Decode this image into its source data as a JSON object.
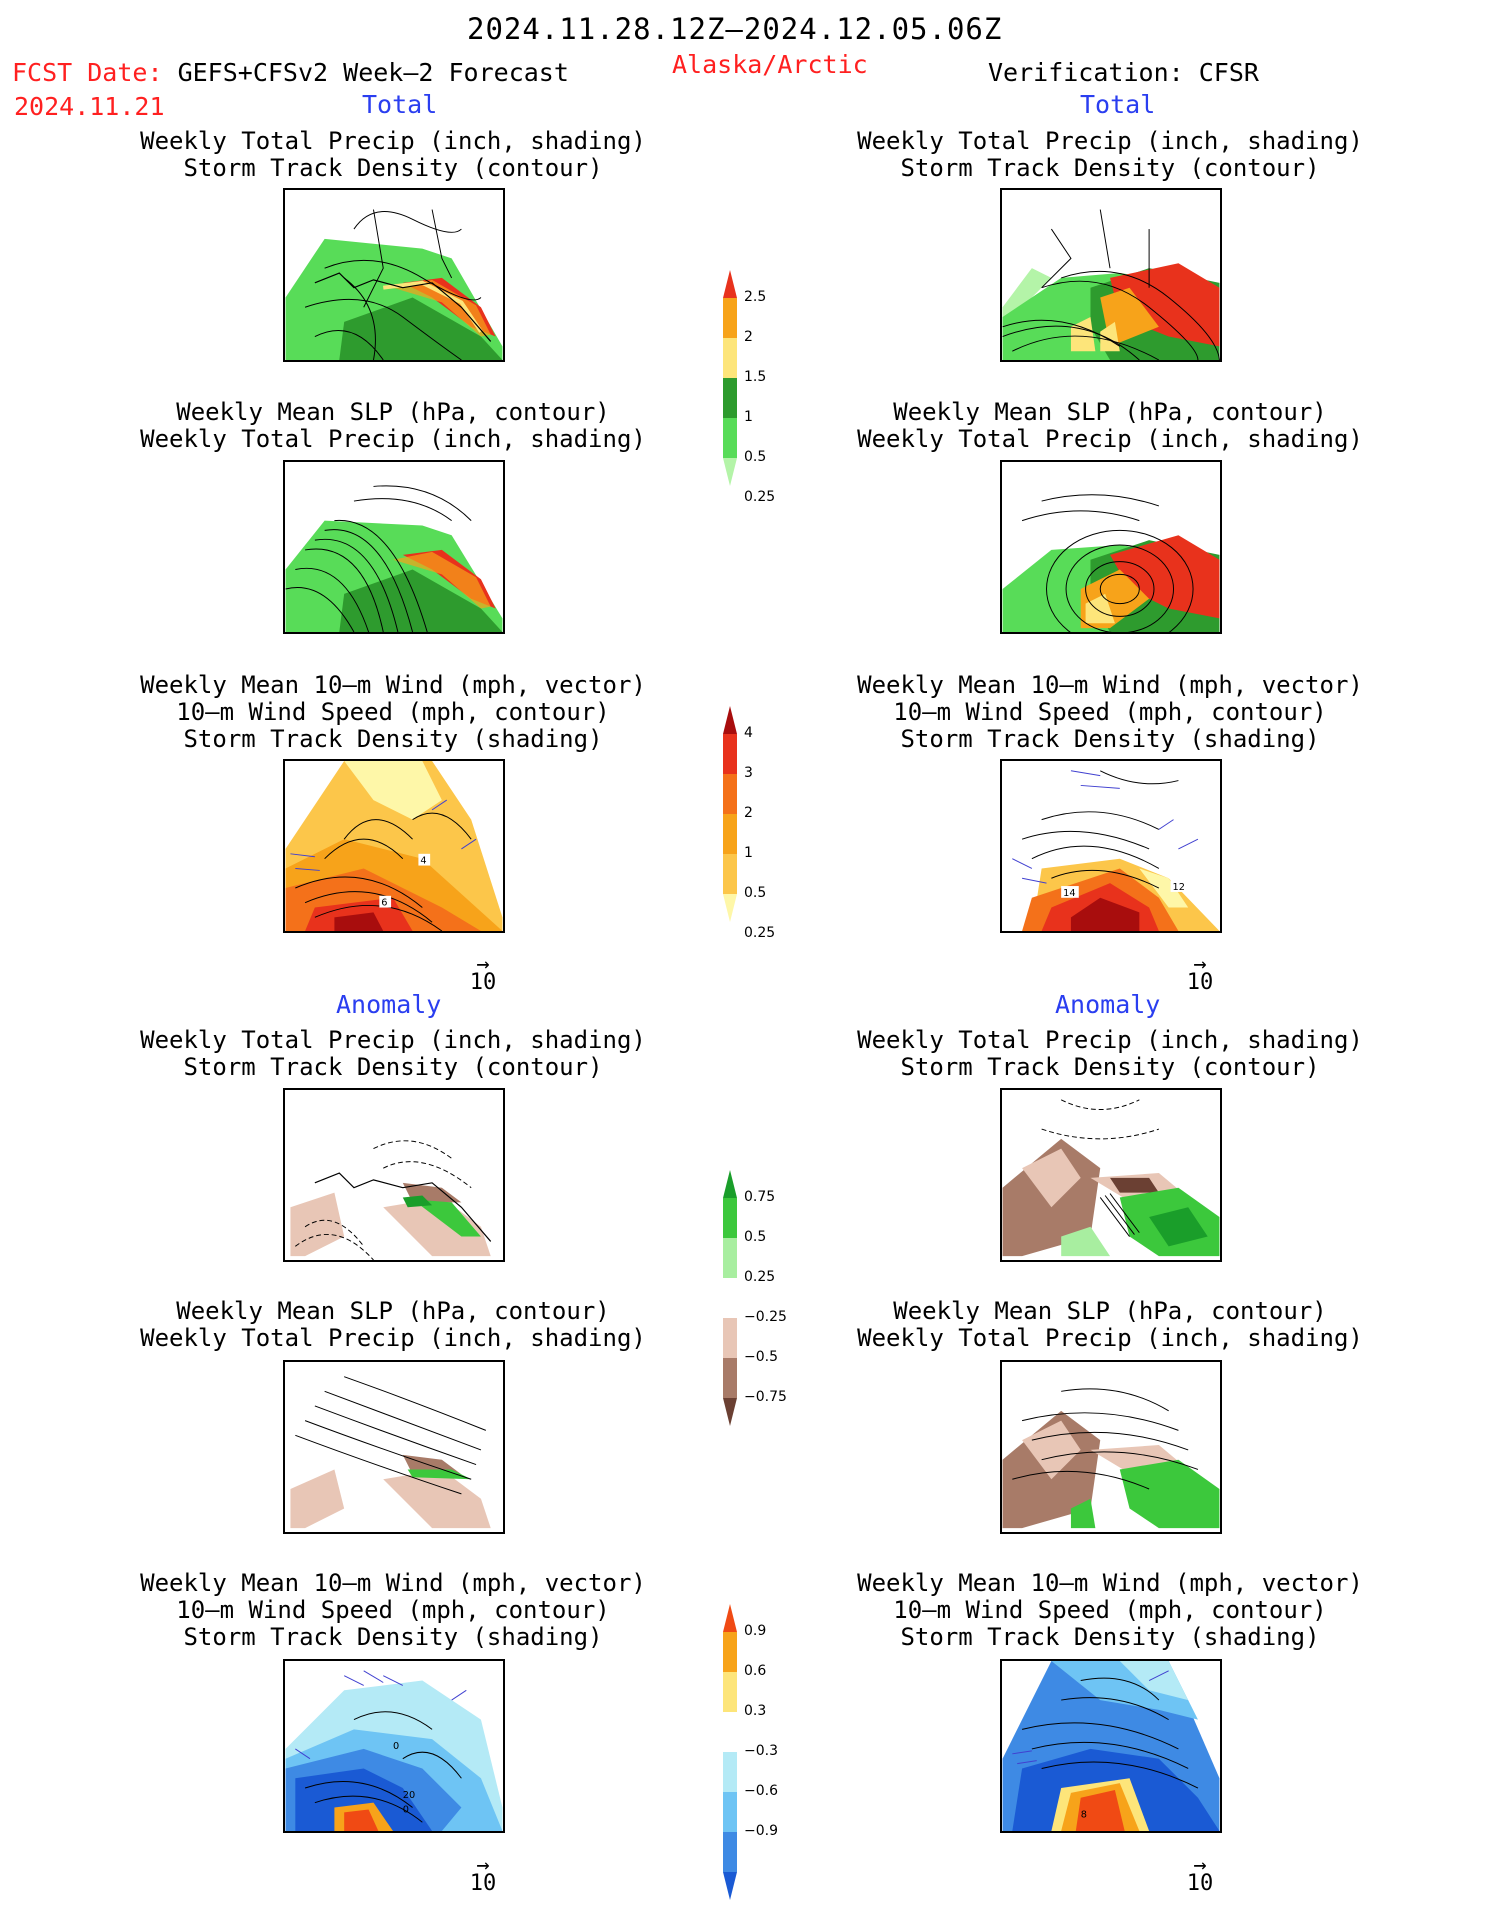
{
  "header": {
    "period": "2024.11.28.12Z–2024.12.05.06Z",
    "fcst_label": "FCST Date:",
    "fcst_model": "GEFS+CFSv2 Week–2 Forecast",
    "fcst_date": "2024.11.21",
    "region": "Alaska/Arctic",
    "verification": "Verification: CFSR"
  },
  "sections": {
    "total": "Total",
    "anomaly": "Anomaly"
  },
  "titles": {
    "precip_storm": [
      "Weekly Total Precip (inch, shading)",
      "Storm Track Density (contour)"
    ],
    "slp_precip": [
      "Weekly Mean SLP (hPa, contour)",
      "Weekly Total Precip (inch, shading)"
    ],
    "wind_storm": [
      "Weekly Mean 10–m Wind (mph, vector)",
      "10–m Wind Speed (mph, contour)",
      "Storm Track Density (shading)"
    ]
  },
  "vector_ref": {
    "arrow": "→",
    "value": "10"
  },
  "panels": {
    "fc_wind_total_labels": [
      "4",
      "6"
    ],
    "ob_wind_total_labels": [
      "14",
      "12"
    ],
    "fc_wind_anom_labels": [
      "0",
      "20",
      "0"
    ],
    "ob_wind_anom_labels": [
      "8"
    ]
  },
  "colorbars": [
    {
      "name": "total-precip",
      "labels": [
        "2.5",
        "2",
        "1.5",
        "1",
        "0.5",
        "0.25"
      ],
      "colors": [
        "#e8321c",
        "#f7a31a",
        "#fde57a",
        "#2e9b2e",
        "#58dc58",
        "#b4f4a8"
      ]
    },
    {
      "name": "total-storm",
      "labels": [
        "4",
        "3",
        "2",
        "1",
        "0.5",
        "0.25"
      ],
      "colors": [
        "#a80d0d",
        "#e8321c",
        "#f4711a",
        "#f7a31a",
        "#fcc64a",
        "#fef7a8"
      ]
    },
    {
      "name": "anom-precip",
      "labels": [
        "0.75",
        "0.5",
        "0.25",
        "−0.25",
        "−0.5",
        "−0.75"
      ],
      "colors": [
        "#1a9e2a",
        "#3cc83c",
        "#a8eea0",
        "#ffffff",
        "#e8c6b6",
        "#a87b68",
        "#6b4033"
      ]
    },
    {
      "name": "anom-storm",
      "labels": [
        "0.9",
        "0.6",
        "0.3",
        "−0.3",
        "−0.6",
        "−0.9"
      ],
      "colors": [
        "#f04a14",
        "#f7a31a",
        "#fde57a",
        "#ffffff",
        "#b4eaf6",
        "#6ec4f4",
        "#3e8ae4",
        "#1a5ad4"
      ]
    }
  ]
}
